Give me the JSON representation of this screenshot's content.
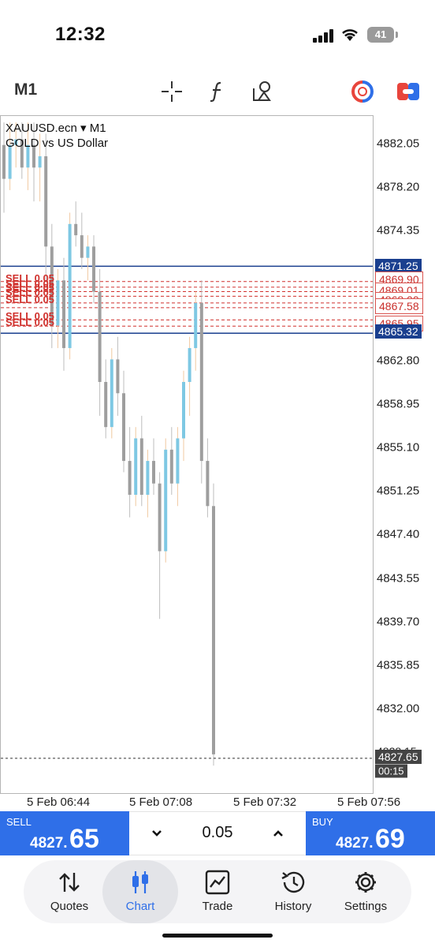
{
  "status_bar": {
    "time": "12:32",
    "battery": "41"
  },
  "toolbar": {
    "timeframe": "M1",
    "icons": [
      "crosshair-icon",
      "indicators-icon",
      "objects-icon",
      "one-click-trading-icon",
      "toggle-icon"
    ]
  },
  "chart": {
    "symbol_line": "XAUUSD.ecn ▾ M1",
    "description": "GOLD vs US Dollar",
    "price_labels": [
      "4882.05",
      "4878.20",
      "4874.35",
      "4862.80",
      "4858.95",
      "4855.10",
      "4851.25",
      "4847.40",
      "4843.55",
      "4839.70",
      "4835.85",
      "4832.00"
    ],
    "level_tags": {
      "upper": "4871.25",
      "lower": "4865.32",
      "order_a": "4869.90",
      "order_b": "4869.01",
      "order_c": "4868.00",
      "order_d": "4867.58",
      "order_e": "4865.95",
      "current_partial": "4828.15",
      "current": "4827.65",
      "countdown": "00:15"
    },
    "sell_orders": [
      "SELL 0.05",
      "SELL 0.05",
      "SELL 0.05",
      "SELL 0.05",
      "SELL 0.05",
      "SELL 0.05",
      "SELL 0.05"
    ],
    "time_labels": [
      "5 Feb 06:44",
      "5 Feb 07:08",
      "5 Feb 07:32",
      "5 Feb 07:56"
    ],
    "colors": {
      "bull": "#7ec8e3",
      "bear": "#9e9e9e",
      "level": "#1a3f8f",
      "order": "#d0312d"
    }
  },
  "trade_panel": {
    "sell_label": "SELL",
    "sell_price_small": "4827.",
    "sell_price_big": "65",
    "volume": "0.05",
    "decrease_symbol": "⌄",
    "increase_symbol": "⌃",
    "buy_label": "BUY",
    "buy_price_small": "4827.",
    "buy_price_big": "69"
  },
  "nav": {
    "items": [
      {
        "label": "Quotes",
        "icon": "quotes-icon"
      },
      {
        "label": "Chart",
        "icon": "chart-icon"
      },
      {
        "label": "Trade",
        "icon": "trade-icon"
      },
      {
        "label": "History",
        "icon": "history-icon"
      },
      {
        "label": "Settings",
        "icon": "settings-icon"
      }
    ],
    "active": "Chart"
  },
  "candles": [
    {
      "o": 4882,
      "h": 4884,
      "l": 4876,
      "c": 4879
    },
    {
      "o": 4879,
      "h": 4884,
      "l": 4878,
      "c": 4882
    },
    {
      "o": 4882,
      "h": 4884,
      "l": 4880,
      "c": 4882.5
    },
    {
      "o": 4882.5,
      "h": 4884,
      "l": 4879,
      "c": 4880
    },
    {
      "o": 4880,
      "h": 4884,
      "l": 4878,
      "c": 4882
    },
    {
      "o": 4882,
      "h": 4884,
      "l": 4877,
      "c": 4880
    },
    {
      "o": 4880,
      "h": 4883,
      "l": 4877,
      "c": 4881
    },
    {
      "o": 4881,
      "h": 4883,
      "l": 4870,
      "c": 4873
    },
    {
      "o": 4873,
      "h": 4875,
      "l": 4864,
      "c": 4866
    },
    {
      "o": 4866,
      "h": 4871,
      "l": 4864,
      "c": 4870
    },
    {
      "o": 4870,
      "h": 4872,
      "l": 4862,
      "c": 4864
    },
    {
      "o": 4864,
      "h": 4876,
      "l": 4863,
      "c": 4875
    },
    {
      "o": 4875,
      "h": 4877,
      "l": 4873,
      "c": 4874
    },
    {
      "o": 4874,
      "h": 4876,
      "l": 4871,
      "c": 4872
    },
    {
      "o": 4872,
      "h": 4874,
      "l": 4870,
      "c": 4873
    },
    {
      "o": 4873,
      "h": 4874,
      "l": 4868,
      "c": 4869
    },
    {
      "o": 4869,
      "h": 4871,
      "l": 4858,
      "c": 4861
    },
    {
      "o": 4861,
      "h": 4863,
      "l": 4856,
      "c": 4857
    },
    {
      "o": 4857,
      "h": 4864,
      "l": 4856,
      "c": 4863
    },
    {
      "o": 4863,
      "h": 4865,
      "l": 4858,
      "c": 4860
    },
    {
      "o": 4860,
      "h": 4862,
      "l": 4853,
      "c": 4854
    },
    {
      "o": 4854,
      "h": 4857,
      "l": 4849,
      "c": 4851
    },
    {
      "o": 4851,
      "h": 4857,
      "l": 4850,
      "c": 4856
    },
    {
      "o": 4856,
      "h": 4858,
      "l": 4850,
      "c": 4851
    },
    {
      "o": 4851,
      "h": 4855,
      "l": 4849,
      "c": 4854
    },
    {
      "o": 4854,
      "h": 4856,
      "l": 4851,
      "c": 4852
    },
    {
      "o": 4852,
      "h": 4853,
      "l": 4840,
      "c": 4846
    },
    {
      "o": 4846,
      "h": 4856,
      "l": 4845,
      "c": 4855
    },
    {
      "o": 4855,
      "h": 4857,
      "l": 4851,
      "c": 4852
    },
    {
      "o": 4852,
      "h": 4857,
      "l": 4850,
      "c": 4856
    },
    {
      "o": 4856,
      "h": 4862,
      "l": 4854,
      "c": 4861
    },
    {
      "o": 4861,
      "h": 4865,
      "l": 4858,
      "c": 4864
    },
    {
      "o": 4864,
      "h": 4869,
      "l": 4862,
      "c": 4868
    },
    {
      "o": 4868,
      "h": 4870,
      "l": 4852,
      "c": 4854
    },
    {
      "o": 4854,
      "h": 4856,
      "l": 4849,
      "c": 4850
    },
    {
      "o": 4850,
      "h": 4852,
      "l": 4827,
      "c": 4828
    }
  ]
}
